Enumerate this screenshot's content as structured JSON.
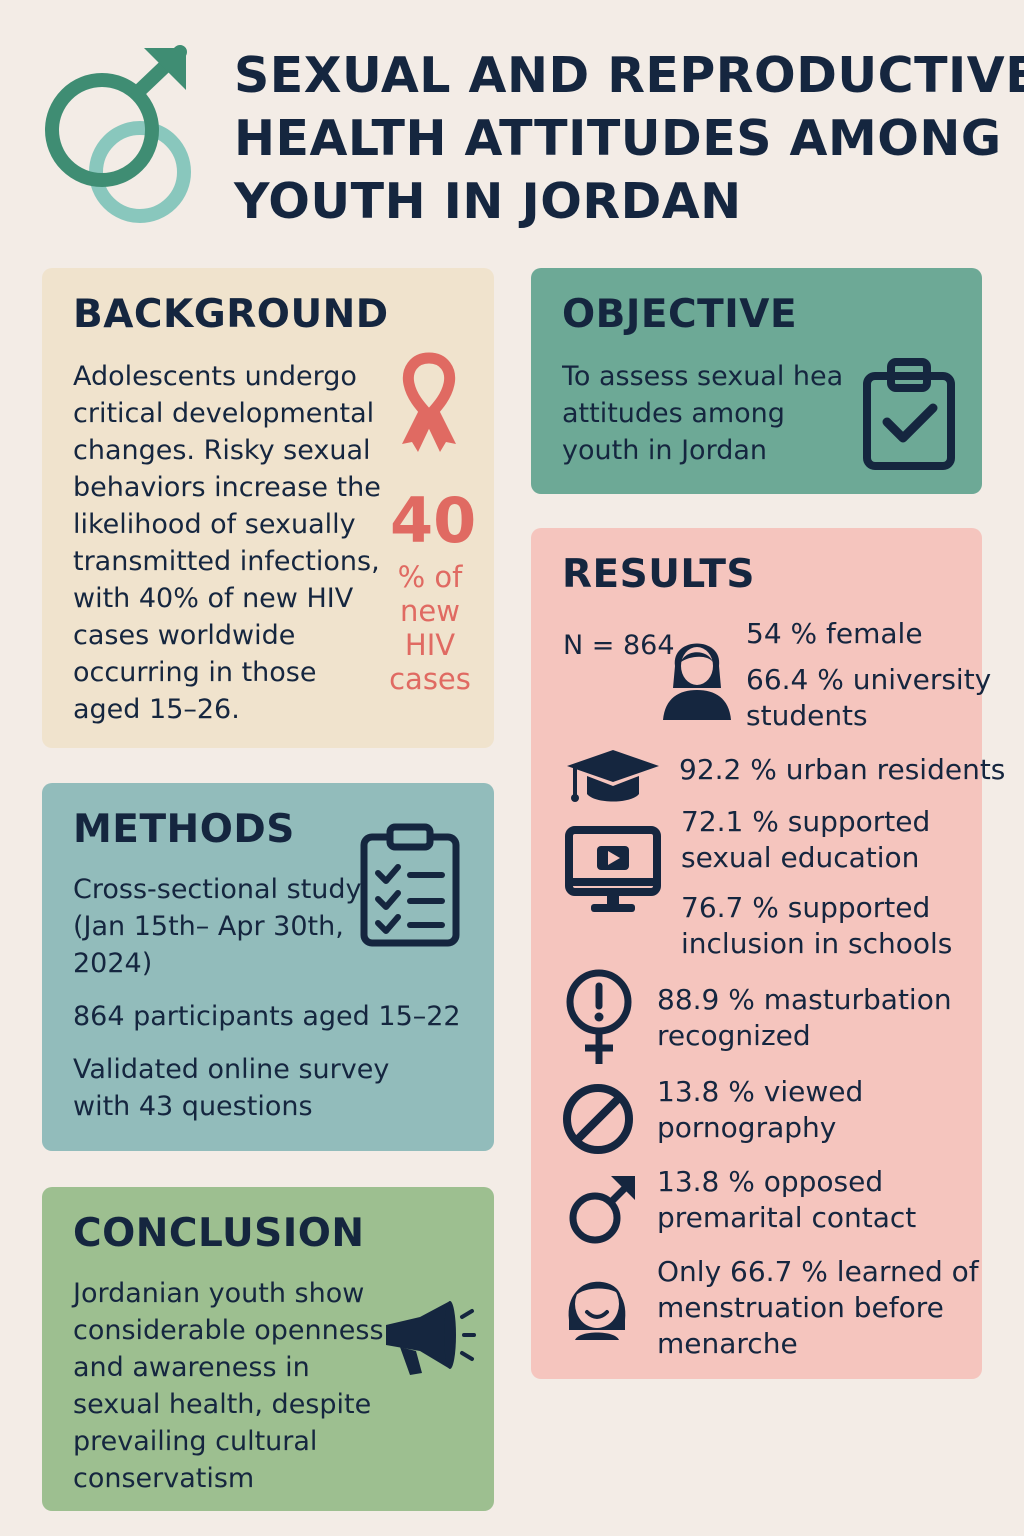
{
  "title": {
    "lines": [
      "SEXUAL AND REPRODUCTIVE",
      "HEALTH ATTITUDES AMONG",
      "YOUTH IN JORDAN"
    ],
    "icon": "male-symbol-icon"
  },
  "colors": {
    "navy": "#15263f",
    "teal_dark": "#3f8d73",
    "teal_light": "#89c7bd",
    "coral": "#e06a62",
    "background_card": "#f0e3cd",
    "objective_card": "#6da996",
    "methods_card": "#92bcbb",
    "conclusion_card": "#9dbf90",
    "results_card": "#f5c5be"
  },
  "background": {
    "heading": "BACKGROUND",
    "lines": [
      "Adolescents undergo",
      "critical developmental",
      "changes. Risky sexual",
      "behaviors increase the",
      "likelihood of sexually",
      "transmitted infections,",
      "with 40% of new HIV",
      "cases worldwide",
      "occurring in those",
      "aged 15–26."
    ],
    "stat_value": "40",
    "stat_label_lines": [
      "% of",
      "new",
      "HIV",
      "cases"
    ],
    "icon": "awareness-ribbon-icon"
  },
  "objective": {
    "heading": "OBJECTIVE",
    "lines": [
      "To assess sexual heal",
      "attitudes among",
      "youth in Jordan"
    ],
    "icon": "clipboard-check-icon"
  },
  "methods": {
    "heading": "METHODS",
    "design_lines": [
      "Cross-sectional study",
      "(Jan 15th– Apr 30th,",
      "2024)"
    ],
    "participants": "864 participants aged 15–22",
    "survey_lines": [
      "Validated online survey",
      "with 43 questions"
    ],
    "icon": "checklist-icon"
  },
  "conclusion": {
    "heading": "CONCLUSION",
    "lines": [
      "Jordanian youth show",
      "considerable openness",
      "and awareness in",
      "sexual health, despite",
      "prevailing cultural",
      "conservatism"
    ],
    "icon": "megaphone-icon"
  },
  "results": {
    "heading": "RESULTS",
    "n": "N = 864",
    "female": "54 % female",
    "university_lines": [
      "66.4 % university",
      "students"
    ],
    "urban": "92.2 % urban residents",
    "sex_ed_lines": [
      "72.1 % supported",
      "sexual education"
    ],
    "schools_lines": [
      "76.7 % supported",
      "inclusion in schools"
    ],
    "masturbation_lines": [
      "88.9 % masturbation",
      "recognized"
    ],
    "pornography_lines": [
      "13.8 % viewed",
      "pornography"
    ],
    "premarital_lines": [
      "13.8 % opposed",
      "premarital contact"
    ],
    "menstruation_lines": [
      "Only 66.7 % learned of",
      "menstruation before",
      "menarche"
    ],
    "icons": [
      "female-person-icon",
      "graduation-cap-icon",
      "monitor-play-icon",
      "female-symbol-alert-icon",
      "prohibited-icon",
      "male-symbol-icon",
      "smiling-girl-icon"
    ]
  }
}
